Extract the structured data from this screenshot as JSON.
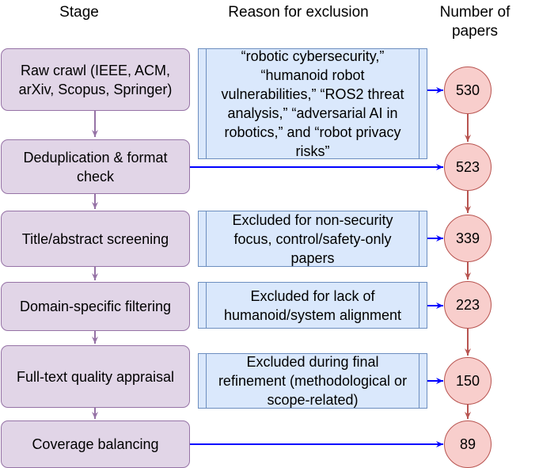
{
  "headers": {
    "stage": "Stage",
    "reason": "Reason for exclusion",
    "count": "Number of papers"
  },
  "stages": [
    {
      "label": "Raw crawl (IEEE, ACM, arXiv, Scopus, Springer)",
      "reason": "“robotic cybersecurity,” “humanoid robot vulnerabilities,” “ROS2 threat analysis,” “adversarial AI in robotics,” and “robot privacy risks”",
      "count": "530"
    },
    {
      "label": "Deduplication & format check",
      "reason": "",
      "count": "523"
    },
    {
      "label": "Title/abstract screening",
      "reason": "Excluded for non-security focus, control/safety-only papers",
      "count": "339"
    },
    {
      "label": "Domain-specific filtering",
      "reason": "Excluded for lack of humanoid/system alignment",
      "count": "223"
    },
    {
      "label": "Full-text quality appraisal",
      "reason": "Excluded during final refinement (methodological or scope-related)",
      "count": "150"
    },
    {
      "label": "Coverage balancing",
      "reason": "",
      "count": "89"
    }
  ],
  "colors": {
    "stage_fill": "#e1d5e7",
    "stage_border": "#9673a6",
    "reason_fill": "#dae8fc",
    "reason_border": "#6c8ebf",
    "count_fill": "#f8cecc",
    "count_border": "#b85450",
    "arrow_blue": "#0000ff",
    "arrow_purple": "#9673a6",
    "arrow_red": "#b85450"
  }
}
